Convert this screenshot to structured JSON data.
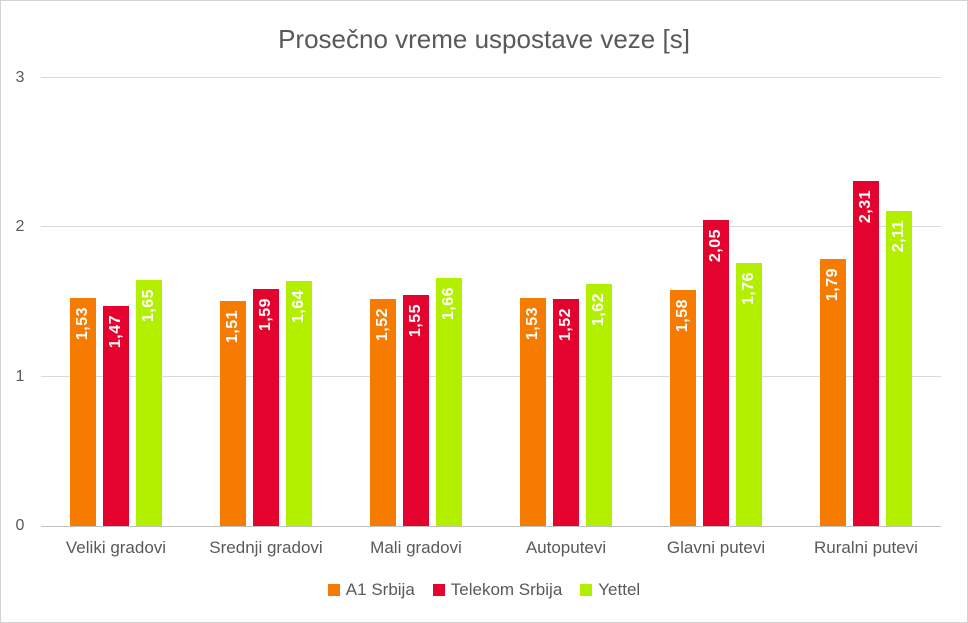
{
  "chart_data": {
    "type": "bar",
    "title": "Prosečno vreme uspostave veze [s]",
    "xlabel": "",
    "ylabel": "",
    "categories": [
      "Veliki gradovi",
      "Srednji gradovi",
      "Mali gradovi",
      "Autoputevi",
      "Glavni putevi",
      "Ruralni putevi"
    ],
    "series": [
      {
        "name": "A1 Srbija",
        "color": "#f57c00",
        "values": [
          1.53,
          1.51,
          1.52,
          1.53,
          1.58,
          1.79
        ],
        "labels": [
          "1,53",
          "1,51",
          "1,52",
          "1,53",
          "1,58",
          "1,79"
        ]
      },
      {
        "name": "Telekom Srbija",
        "color": "#e4032e",
        "values": [
          1.47,
          1.59,
          1.55,
          1.52,
          2.05,
          2.31
        ],
        "labels": [
          "1,47",
          "1,59",
          "1,55",
          "1,52",
          "2,05",
          "2,31"
        ]
      },
      {
        "name": "Yettel",
        "color": "#b2f000",
        "values": [
          1.65,
          1.64,
          1.66,
          1.62,
          1.76,
          2.11
        ],
        "labels": [
          "1,65",
          "1,64",
          "1,66",
          "1,62",
          "1,76",
          "2,11"
        ]
      }
    ],
    "ylim": [
      0,
      3
    ],
    "yticks": [
      0,
      1,
      2,
      3
    ],
    "grid": true,
    "legend_position": "bottom",
    "value_label_color": "#ffffff",
    "text_color": "#595959",
    "gridline_color": "#d9d9d9",
    "axis_line_color": "#bfbfbf",
    "background": "#ffffff"
  }
}
